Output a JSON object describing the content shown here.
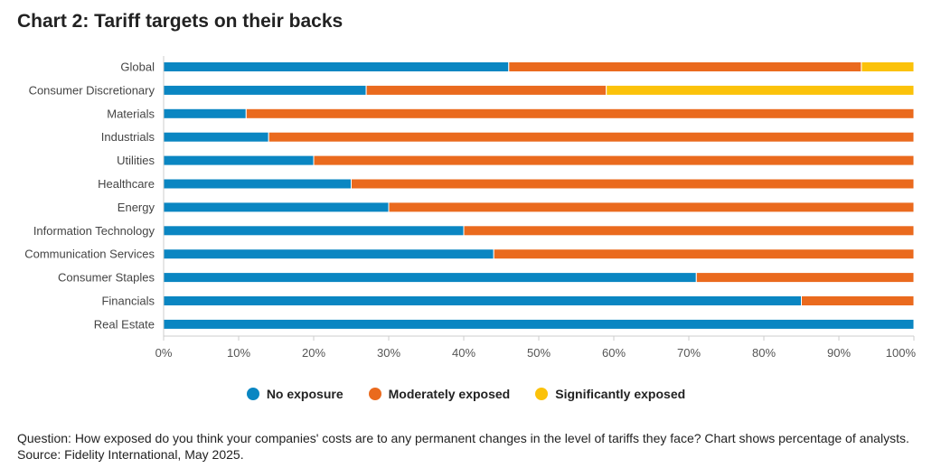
{
  "page": {
    "title": "Chart 2: Tariff targets on their backs"
  },
  "chart_data": {
    "type": "bar",
    "orientation": "horizontal",
    "stacked": true,
    "categories": [
      "Global",
      "Consumer Discretionary",
      "Materials",
      "Industrials",
      "Utilities",
      "Healthcare",
      "Energy",
      "Information Technology",
      "Communication Services",
      "Consumer Staples",
      "Financials",
      "Real Estate"
    ],
    "series": [
      {
        "name": "No exposure",
        "color": "#0a86c2",
        "values": [
          46,
          27,
          11,
          14,
          20,
          25,
          30,
          40,
          44,
          71,
          85,
          100
        ]
      },
      {
        "name": "Moderately exposed",
        "color": "#ea6a1e",
        "values": [
          47,
          32,
          89,
          86,
          80,
          75,
          70,
          60,
          56,
          29,
          15,
          0
        ]
      },
      {
        "name": "Significantly exposed",
        "color": "#fbc20a",
        "values": [
          7,
          41,
          0,
          0,
          0,
          0,
          0,
          0,
          0,
          0,
          0,
          0
        ]
      }
    ],
    "xlim": [
      0,
      100
    ],
    "x_ticks": [
      "0%",
      "10%",
      "20%",
      "30%",
      "40%",
      "50%",
      "60%",
      "70%",
      "80%",
      "90%",
      "100%"
    ],
    "grid": false,
    "legend_position": "bottom"
  },
  "footnote": "Question: How exposed do you think your companies' costs are to any permanent changes in the level of tariffs they face? Chart shows percentage of analysts. Source: Fidelity International, May 2025."
}
